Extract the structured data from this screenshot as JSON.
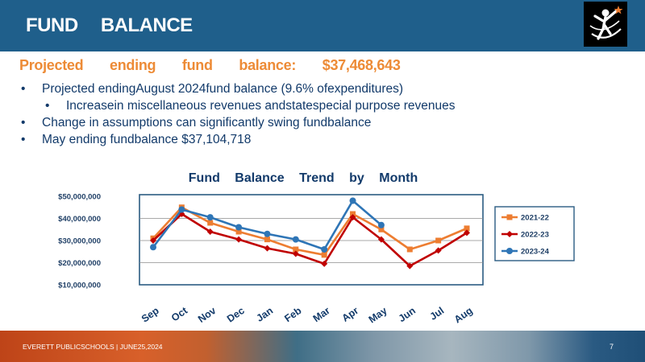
{
  "slide": {
    "title": "FUND BALANCE",
    "subtitle": "Projected ending fund balance: $37,468,643",
    "bullets": [
      {
        "text": "Projected endingAugust 2024fund balance (9.6% ofexpenditures)",
        "level": 1
      },
      {
        "text": "Increasein miscellaneous revenues andstatespecial purpose revenues",
        "level": 2
      },
      {
        "text": "Change in assumptions can significantly swing fundbalance",
        "level": 1
      },
      {
        "text": "May ending fundbalance $37,104,718",
        "level": 1
      }
    ],
    "footer": "EVERETT PUBLICSCHOOLS | JUNE25,2024",
    "page_number": "7"
  },
  "chart_data": {
    "type": "line",
    "title": "Fund Balance Trend by Month",
    "categories": [
      "Sep",
      "Oct",
      "Nov",
      "Dec",
      "Jan",
      "Feb",
      "Mar",
      "Apr",
      "May",
      "Jun",
      "Jul",
      "Aug"
    ],
    "y_ticks": [
      "$10,000,000",
      "$20,000,000",
      "$30,000,000",
      "$40,000,000",
      "$50,000,000"
    ],
    "ylim": [
      10000000,
      50000000
    ],
    "grid": true,
    "legend_position": "right",
    "series": [
      {
        "name": "2021-22",
        "color": "#ed7d31",
        "marker": "square",
        "values": [
          31000000,
          45000000,
          38000000,
          34000000,
          30500000,
          26000000,
          23500000,
          42000000,
          35000000,
          26000000,
          30000000,
          35500000
        ]
      },
      {
        "name": "2022-23",
        "color": "#c00000",
        "marker": "diamond",
        "values": [
          30000000,
          42000000,
          34000000,
          30500000,
          26500000,
          24000000,
          19500000,
          40500000,
          30500000,
          18500000,
          25500000,
          33500000
        ]
      },
      {
        "name": "2023-24",
        "color": "#2e75b6",
        "marker": "circle",
        "values": [
          27000000,
          44000000,
          40500000,
          36000000,
          33000000,
          30500000,
          26000000,
          48000000,
          37000000,
          null,
          null,
          null
        ]
      }
    ]
  }
}
